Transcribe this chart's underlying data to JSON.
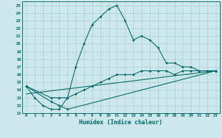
{
  "title": "",
  "xlabel": "Humidex (Indice chaleur)",
  "background_color": "#cce8ec",
  "grid_color": "#aacccc",
  "line_color": "#006666",
  "xlim": [
    -0.5,
    23.5
  ],
  "ylim": [
    11,
    25.5
  ],
  "xticks": [
    0,
    1,
    2,
    3,
    4,
    5,
    6,
    7,
    8,
    9,
    10,
    11,
    12,
    13,
    14,
    15,
    16,
    17,
    18,
    19,
    20,
    21,
    22,
    23
  ],
  "yticks": [
    11,
    12,
    13,
    14,
    15,
    16,
    17,
    18,
    19,
    20,
    21,
    22,
    23,
    24,
    25
  ],
  "main_line_x": [
    0,
    1,
    2,
    3,
    4,
    5,
    6,
    7,
    8,
    9,
    10,
    11,
    12,
    13,
    14,
    15,
    16,
    17,
    18,
    19,
    20,
    21,
    22,
    23
  ],
  "main_line_y": [
    14.5,
    13.0,
    12.0,
    11.5,
    11.5,
    13.0,
    17.0,
    20.0,
    22.5,
    23.5,
    24.5,
    25.0,
    23.0,
    20.5,
    21.0,
    20.5,
    19.5,
    17.5,
    17.5,
    17.0,
    17.0,
    16.5,
    16.5,
    16.5
  ],
  "line2_x": [
    0,
    3,
    4,
    5,
    6,
    7,
    8,
    9,
    10,
    11,
    12,
    13,
    14,
    15,
    16,
    17,
    18,
    19,
    20,
    21,
    22,
    23
  ],
  "line2_y": [
    14.5,
    13.0,
    13.0,
    13.0,
    13.5,
    14.0,
    14.5,
    15.0,
    15.5,
    16.0,
    16.0,
    16.0,
    16.5,
    16.5,
    16.5,
    16.5,
    16.0,
    16.5,
    16.5,
    16.5,
    16.5,
    16.5
  ],
  "line3_x": [
    0,
    3,
    4,
    5,
    23
  ],
  "line3_y": [
    14.5,
    12.5,
    12.0,
    11.5,
    16.5
  ],
  "line4_x": [
    0,
    23
  ],
  "line4_y": [
    13.5,
    16.5
  ]
}
